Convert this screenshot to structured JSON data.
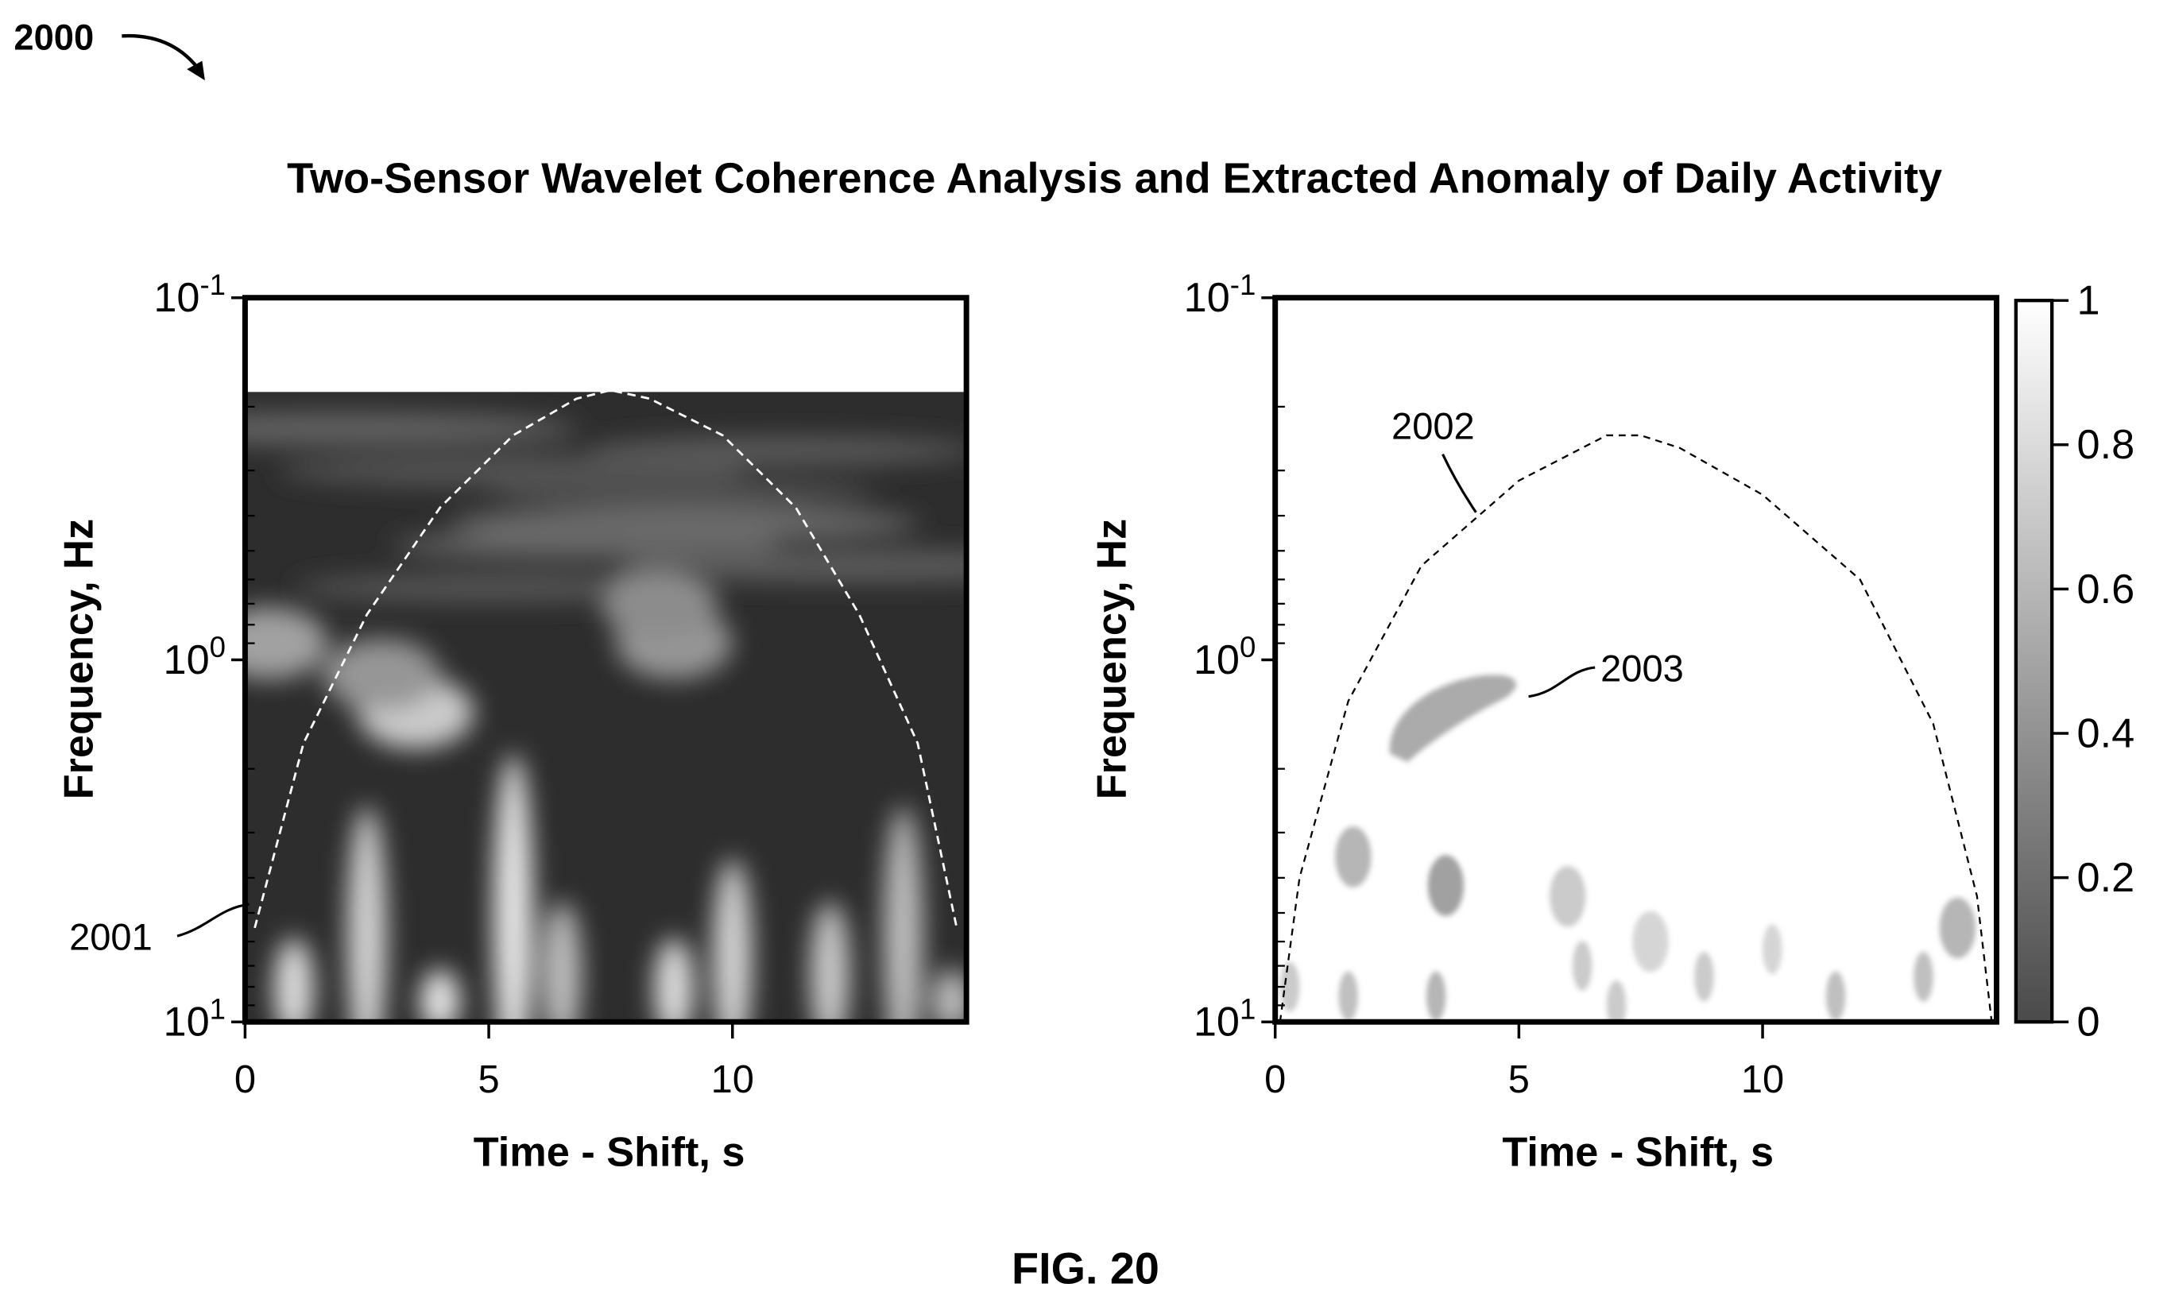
{
  "figure": {
    "ref_number": "2000",
    "title": "Two-Sensor Wavelet Coherence Analysis and Extracted Anomaly of Daily Activity",
    "caption": "FIG. 20"
  },
  "chart_data": [
    {
      "type": "heatmap",
      "panel": "left",
      "title": "",
      "xlabel": "Time - Shift, s",
      "ylabel": "Frequency, Hz",
      "xlim": [
        0,
        14.8
      ],
      "x_ticks": [
        "0",
        "5",
        "10"
      ],
      "x_tick_values": [
        0,
        5,
        10
      ],
      "y_scale": "log",
      "y_ticks": [
        {
          "base": "10",
          "exp": "-1",
          "value": 0.1
        },
        {
          "base": "10",
          "exp": "0",
          "value": 1
        },
        {
          "base": "10",
          "exp": "1",
          "value": 10
        }
      ],
      "colormap": "grayscale (black = 0, white = 1)",
      "annotation": {
        "label": "2001",
        "target": "cone of influence (white dashed)"
      },
      "cone_of_influence": {
        "style": "white dashed",
        "x": [
          0.2,
          1.2,
          2.5,
          4.0,
          5.5,
          6.8,
          7.5,
          8.3,
          9.8,
          11.3,
          12.6,
          13.8,
          14.6
        ],
        "y": [
          5.5,
          1.7,
          0.75,
          0.38,
          0.24,
          0.19,
          0.18,
          0.19,
          0.24,
          0.38,
          0.75,
          1.7,
          5.5
        ]
      },
      "coherence_blobs": [
        {
          "x": 3.5,
          "y": 1.4,
          "value": 0.75
        },
        {
          "x": 0.5,
          "y": 0.9,
          "value": 0.55
        },
        {
          "x": 2.8,
          "y": 1.1,
          "value": 0.5
        },
        {
          "x": 8.8,
          "y": 0.9,
          "value": 0.5
        },
        {
          "x": 8.5,
          "y": 0.7,
          "value": 0.45
        },
        {
          "x": 5.5,
          "y": 3.2,
          "value": 0.9
        },
        {
          "x": 2.5,
          "y": 4.0,
          "value": 0.8
        },
        {
          "x": 1.0,
          "y": 7.0,
          "value": 0.85
        },
        {
          "x": 4.0,
          "y": 8.0,
          "value": 0.9
        },
        {
          "x": 6.5,
          "y": 6.0,
          "value": 0.7
        },
        {
          "x": 8.8,
          "y": 7.0,
          "value": 0.85
        },
        {
          "x": 10.0,
          "y": 5.0,
          "value": 0.8
        },
        {
          "x": 12.0,
          "y": 6.0,
          "value": 0.75
        },
        {
          "x": 13.5,
          "y": 4.0,
          "value": 0.7
        },
        {
          "x": 14.5,
          "y": 8.0,
          "value": 0.7
        }
      ]
    },
    {
      "type": "heatmap",
      "panel": "right",
      "title": "",
      "xlabel": "Time - Shift, s",
      "ylabel": "Frequency, Hz",
      "xlim": [
        0,
        14.8
      ],
      "x_ticks": [
        "0",
        "5",
        "10"
      ],
      "x_tick_values": [
        0,
        5,
        10
      ],
      "y_scale": "log",
      "y_ticks": [
        {
          "base": "10",
          "exp": "-1",
          "value": 0.1
        },
        {
          "base": "10",
          "exp": "0",
          "value": 1
        },
        {
          "base": "10",
          "exp": "1",
          "value": 10
        }
      ],
      "colormap": "grayscale (black = 0, white = 1)",
      "annotations": [
        {
          "label": "2002",
          "target": "cone of influence (black dashed)"
        },
        {
          "label": "2003",
          "target": "extracted anomaly region"
        }
      ],
      "cone_of_influence": {
        "style": "black dashed",
        "x": [
          0.1,
          0.5,
          1.5,
          3.0,
          5.0,
          6.8,
          7.5,
          8.3,
          10.0,
          12.0,
          13.5,
          14.4,
          14.7
        ],
        "y": [
          10,
          4.0,
          1.3,
          0.55,
          0.32,
          0.24,
          0.24,
          0.26,
          0.35,
          0.6,
          1.5,
          4.5,
          10
        ]
      },
      "anomaly_regions": [
        {
          "x": 4.0,
          "y": 1.3,
          "value": 0.6,
          "label": "2003"
        },
        {
          "x": 1.6,
          "y": 3.5,
          "value": 0.65
        },
        {
          "x": 3.5,
          "y": 4.2,
          "value": 0.55
        },
        {
          "x": 6.0,
          "y": 4.5,
          "value": 0.75
        },
        {
          "x": 1.5,
          "y": 8.5,
          "value": 0.7
        },
        {
          "x": 3.3,
          "y": 8.5,
          "value": 0.65
        },
        {
          "x": 6.3,
          "y": 7.0,
          "value": 0.75
        },
        {
          "x": 7.7,
          "y": 6.0,
          "value": 0.8
        },
        {
          "x": 8.8,
          "y": 7.5,
          "value": 0.75
        },
        {
          "x": 10.2,
          "y": 6.3,
          "value": 0.8
        },
        {
          "x": 11.5,
          "y": 8.5,
          "value": 0.7
        },
        {
          "x": 13.3,
          "y": 7.5,
          "value": 0.7
        },
        {
          "x": 14.0,
          "y": 5.5,
          "value": 0.65
        },
        {
          "x": 0.3,
          "y": 8.0,
          "value": 0.75
        },
        {
          "x": 7.0,
          "y": 9.0,
          "value": 0.75
        }
      ]
    }
  ],
  "colorbar": {
    "range": [
      0,
      1
    ],
    "tick_labels": [
      "1",
      "0.8",
      "0.6",
      "0.4",
      "0.2",
      "0"
    ],
    "tick_values": [
      1,
      0.8,
      0.6,
      0.4,
      0.2,
      0
    ]
  }
}
